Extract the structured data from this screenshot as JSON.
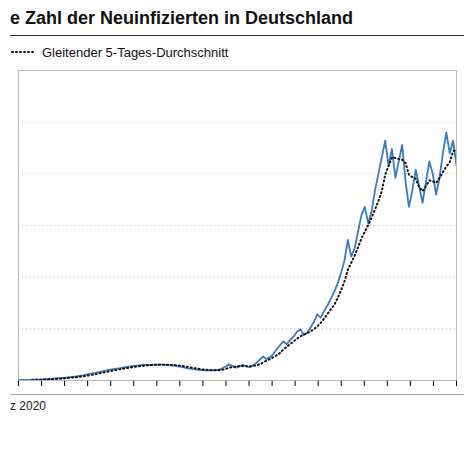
{
  "chart_data": {
    "type": "line",
    "title": "e Zahl der Neuinfizierten in Deutschland",
    "xlabel": "z 2020",
    "x": [
      0,
      1,
      2,
      3,
      4,
      5,
      6,
      7,
      8,
      9,
      10,
      11,
      12,
      13,
      14,
      15,
      16,
      17,
      18,
      19,
      20,
      21,
      22,
      23,
      24,
      25,
      26,
      27,
      28,
      29,
      30,
      31,
      32,
      33,
      34,
      35,
      36,
      37,
      38,
      39,
      40,
      41,
      42,
      43,
      44,
      45,
      46,
      47,
      48,
      49,
      50,
      51,
      52,
      53,
      54,
      55,
      56,
      57,
      58,
      59,
      60,
      61,
      62,
      63,
      64,
      65,
      66,
      67,
      68,
      69,
      70,
      71,
      72,
      73,
      74,
      75,
      76,
      77,
      78,
      79,
      80,
      81,
      82,
      83,
      84,
      85,
      86,
      87,
      88,
      89,
      90,
      91,
      92,
      93,
      94,
      95,
      96,
      97,
      98,
      99,
      100,
      101,
      102,
      103,
      104,
      105,
      106,
      107,
      108,
      109,
      110,
      111,
      112,
      113,
      114,
      115,
      116,
      117,
      118,
      119,
      120,
      121,
      122,
      123,
      124,
      125,
      126,
      127,
      128,
      129
    ],
    "series": [
      {
        "color": "#3a7abf",
        "line_style": "solid",
        "values": [
          10,
          12,
          14,
          16,
          18,
          20,
          22,
          28,
          32,
          36,
          42,
          50,
          58,
          65,
          72,
          80,
          90,
          100,
          112,
          125,
          140,
          158,
          175,
          192,
          210,
          228,
          245,
          260,
          275,
          288,
          300,
          315,
          328,
          340,
          352,
          362,
          370,
          375,
          378,
          380,
          382,
          383,
          382,
          380,
          375,
          368,
          358,
          345,
          330,
          312,
          295,
          280,
          268,
          258,
          252,
          248,
          246,
          248,
          252,
          260,
          295,
          340,
          390,
          350,
          310,
          340,
          380,
          350,
          320,
          360,
          420,
          500,
          580,
          520,
          560,
          640,
          750,
          850,
          950,
          880,
          980,
          1060,
          1180,
          1240,
          1100,
          1150,
          1280,
          1420,
          1600,
          1520,
          1680,
          1820,
          1980,
          2150,
          2350,
          2600,
          2900,
          3400,
          3000,
          3200,
          3600,
          4000,
          4200,
          3800,
          4100,
          4600,
          5000,
          5400,
          5800,
          5200,
          5600,
          4900,
          5300,
          5700,
          4800,
          4200,
          4600,
          5100,
          4700,
          4300,
          4800,
          5300,
          5000,
          4500,
          4900,
          5500,
          6000,
          5500,
          5800,
          5200
        ]
      },
      {
        "name": "Gleitender 5-Tages-Durchschnitt",
        "color": "#111111",
        "line_style": "dotted",
        "values": [
          null,
          null,
          null,
          null,
          14,
          16,
          18,
          20.8,
          24,
          27.6,
          32,
          37.6,
          43.6,
          50.2,
          57.4,
          65,
          73,
          81.4,
          90.8,
          101.4,
          113.4,
          127,
          142,
          158,
          175,
          192.6,
          210,
          227,
          243.6,
          259.2,
          273.6,
          287.6,
          301.2,
          314.2,
          327,
          339.4,
          350.4,
          359.8,
          367.4,
          373,
          377,
          379.6,
          381,
          381.4,
          380.4,
          377.6,
          372.6,
          365.2,
          355.2,
          342.6,
          328,
          312.4,
          297,
          282.6,
          270.6,
          261.2,
          254.4,
          250.4,
          249.2,
          250.8,
          260.2,
          279,
          307.4,
          327,
          337,
          346,
          354,
          346,
          340,
          350,
          366,
          390,
          436,
          476,
          516,
          560,
          610,
          664,
          750,
          814,
          882,
          944,
          1010,
          1068,
          1112,
          1146,
          1190,
          1238,
          1310,
          1394,
          1500,
          1608,
          1720,
          1830,
          1996,
          2180,
          2396,
          2680,
          2850,
          3020,
          3220,
          3440,
          3600,
          3760,
          3940,
          4140,
          4340,
          4580,
          4980,
          5200,
          5400,
          5380,
          5360,
          5340,
          5260,
          4980,
          4920,
          4880,
          4680,
          4580,
          4700,
          4840,
          4820,
          4780,
          4900,
          5040,
          5180,
          5280,
          5540,
          5600
        ]
      }
    ],
    "xlim": [
      0,
      129
    ],
    "xticks": [
      0,
      6.789473684210526,
      13.578947368421053,
      20.36842105263158,
      27.157894736842106,
      33.94736842105263,
      40.73684210526316,
      47.526315789473685,
      54.31578947368421,
      61.10526315789474,
      67.89473684210526,
      74.6842105263158,
      81.47368421052632,
      88.26315789473684,
      95.05263157894737,
      101.84210526315789,
      108.63157894736842,
      115.42105263157895,
      122.21052631578947,
      129
    ],
    "ylim": [
      0,
      7500
    ],
    "yticks": [
      1250,
      2500,
      3750,
      5000,
      6250,
      7500
    ],
    "grid": true,
    "legend": "upper left",
    "tick_labels": false
  }
}
